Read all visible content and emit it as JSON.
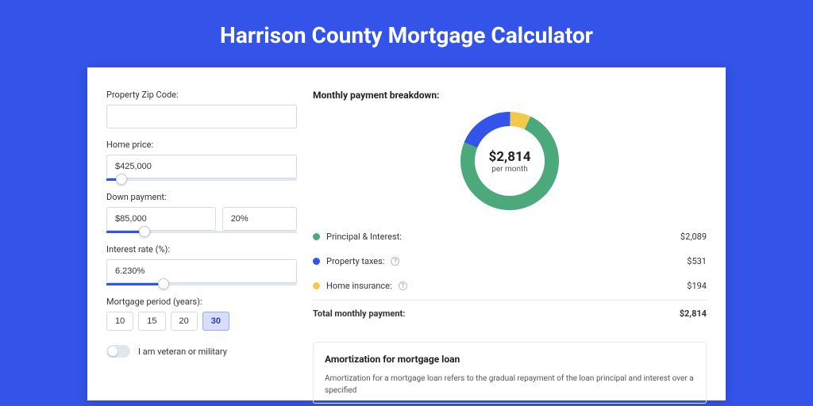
{
  "page": {
    "title": "Harrison County Mortgage Calculator",
    "background_color": "#3453e8"
  },
  "form": {
    "zip": {
      "label": "Property Zip Code:",
      "value": ""
    },
    "home_price": {
      "label": "Home price:",
      "value": "$425,000",
      "slider_pct": 8
    },
    "down_payment": {
      "label": "Down payment:",
      "amount": "$85,000",
      "percent": "20%",
      "slider_pct": 20
    },
    "interest_rate": {
      "label": "Interest rate (%):",
      "value": "6.230%",
      "slider_pct": 30
    },
    "mortgage_period": {
      "label": "Mortgage period (years):",
      "options": [
        "10",
        "15",
        "20",
        "30"
      ],
      "selected": "30"
    },
    "veteran": {
      "label": "I am veteran or military",
      "checked": false
    }
  },
  "breakdown": {
    "title": "Monthly payment breakdown:",
    "center_value": "$2,814",
    "center_sub": "per month",
    "donut": {
      "segments": [
        {
          "label": "Principal & Interest:",
          "value": "$2,089",
          "color": "#4ba97c",
          "fraction": 0.742
        },
        {
          "label": "Property taxes:",
          "value": "$531",
          "color": "#3453e8",
          "fraction": 0.189,
          "info": true
        },
        {
          "label": "Home insurance:",
          "value": "$194",
          "color": "#f2c94c",
          "fraction": 0.069,
          "info": true
        }
      ],
      "thickness": 18,
      "size": 124
    },
    "total_label": "Total monthly payment:",
    "total_value": "$2,814"
  },
  "amortization": {
    "title": "Amortization for mortgage loan",
    "text": "Amortization for a mortgage loan refers to the gradual repayment of the loan principal and interest over a specified"
  }
}
